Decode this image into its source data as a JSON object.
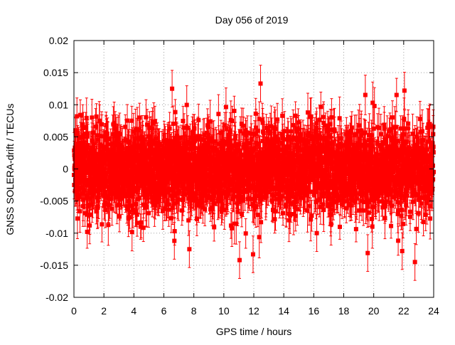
{
  "chart_data": {
    "type": "scatter",
    "title": "Day 056 of 2019",
    "xlabel": "GPS time / hours",
    "ylabel": "GNSS SOLERA-drift / TECUs",
    "xlim": [
      0,
      24
    ],
    "ylim": [
      -0.02,
      0.02
    ],
    "x_ticks": [
      0,
      2,
      4,
      6,
      8,
      10,
      12,
      14,
      16,
      18,
      20,
      22,
      24
    ],
    "x_tick_labels": [
      "0",
      "2",
      "4",
      "6",
      "8",
      "10",
      "12",
      "14",
      "16",
      "18",
      "20",
      "22",
      "24"
    ],
    "y_ticks": [
      -0.02,
      -0.015,
      -0.01,
      -0.005,
      0,
      0.005,
      0.01,
      0.015,
      0.02
    ],
    "y_tick_labels": [
      "-0.02",
      "-0.015",
      "-0.01",
      "-0.005",
      "0",
      "0.005",
      "0.01",
      "0.015",
      "0.02"
    ],
    "grid": true,
    "series": [
      {
        "name": "SOLERA-drift",
        "color": "#ff0000",
        "marker": "square",
        "error_bars": true,
        "description": "Dense noisy series of about 2880 points (30 s sampling) scattered around 0 with error bars",
        "n_points": 2880,
        "mean": 0.0,
        "std": 0.0033,
        "typical_error": 0.0026,
        "max_abs": 0.0172,
        "notable_points": [
          {
            "x": 0.2,
            "y": 0.0082
          },
          {
            "x": 1.2,
            "y": 0.008
          },
          {
            "x": 1.05,
            "y": -0.0088
          },
          {
            "x": 6.55,
            "y": 0.0125
          },
          {
            "x": 6.7,
            "y": -0.0112
          },
          {
            "x": 7.7,
            "y": -0.0125
          },
          {
            "x": 11.05,
            "y": -0.0142
          },
          {
            "x": 11.95,
            "y": -0.0133
          },
          {
            "x": 12.45,
            "y": 0.0133
          },
          {
            "x": 16.2,
            "y": -0.01
          },
          {
            "x": 19.6,
            "y": -0.0131
          },
          {
            "x": 20.05,
            "y": 0.0098
          },
          {
            "x": 21.9,
            "y": -0.0128
          },
          {
            "x": 22.05,
            "y": 0.0122
          },
          {
            "x": 22.75,
            "y": -0.0145
          }
        ]
      }
    ]
  }
}
